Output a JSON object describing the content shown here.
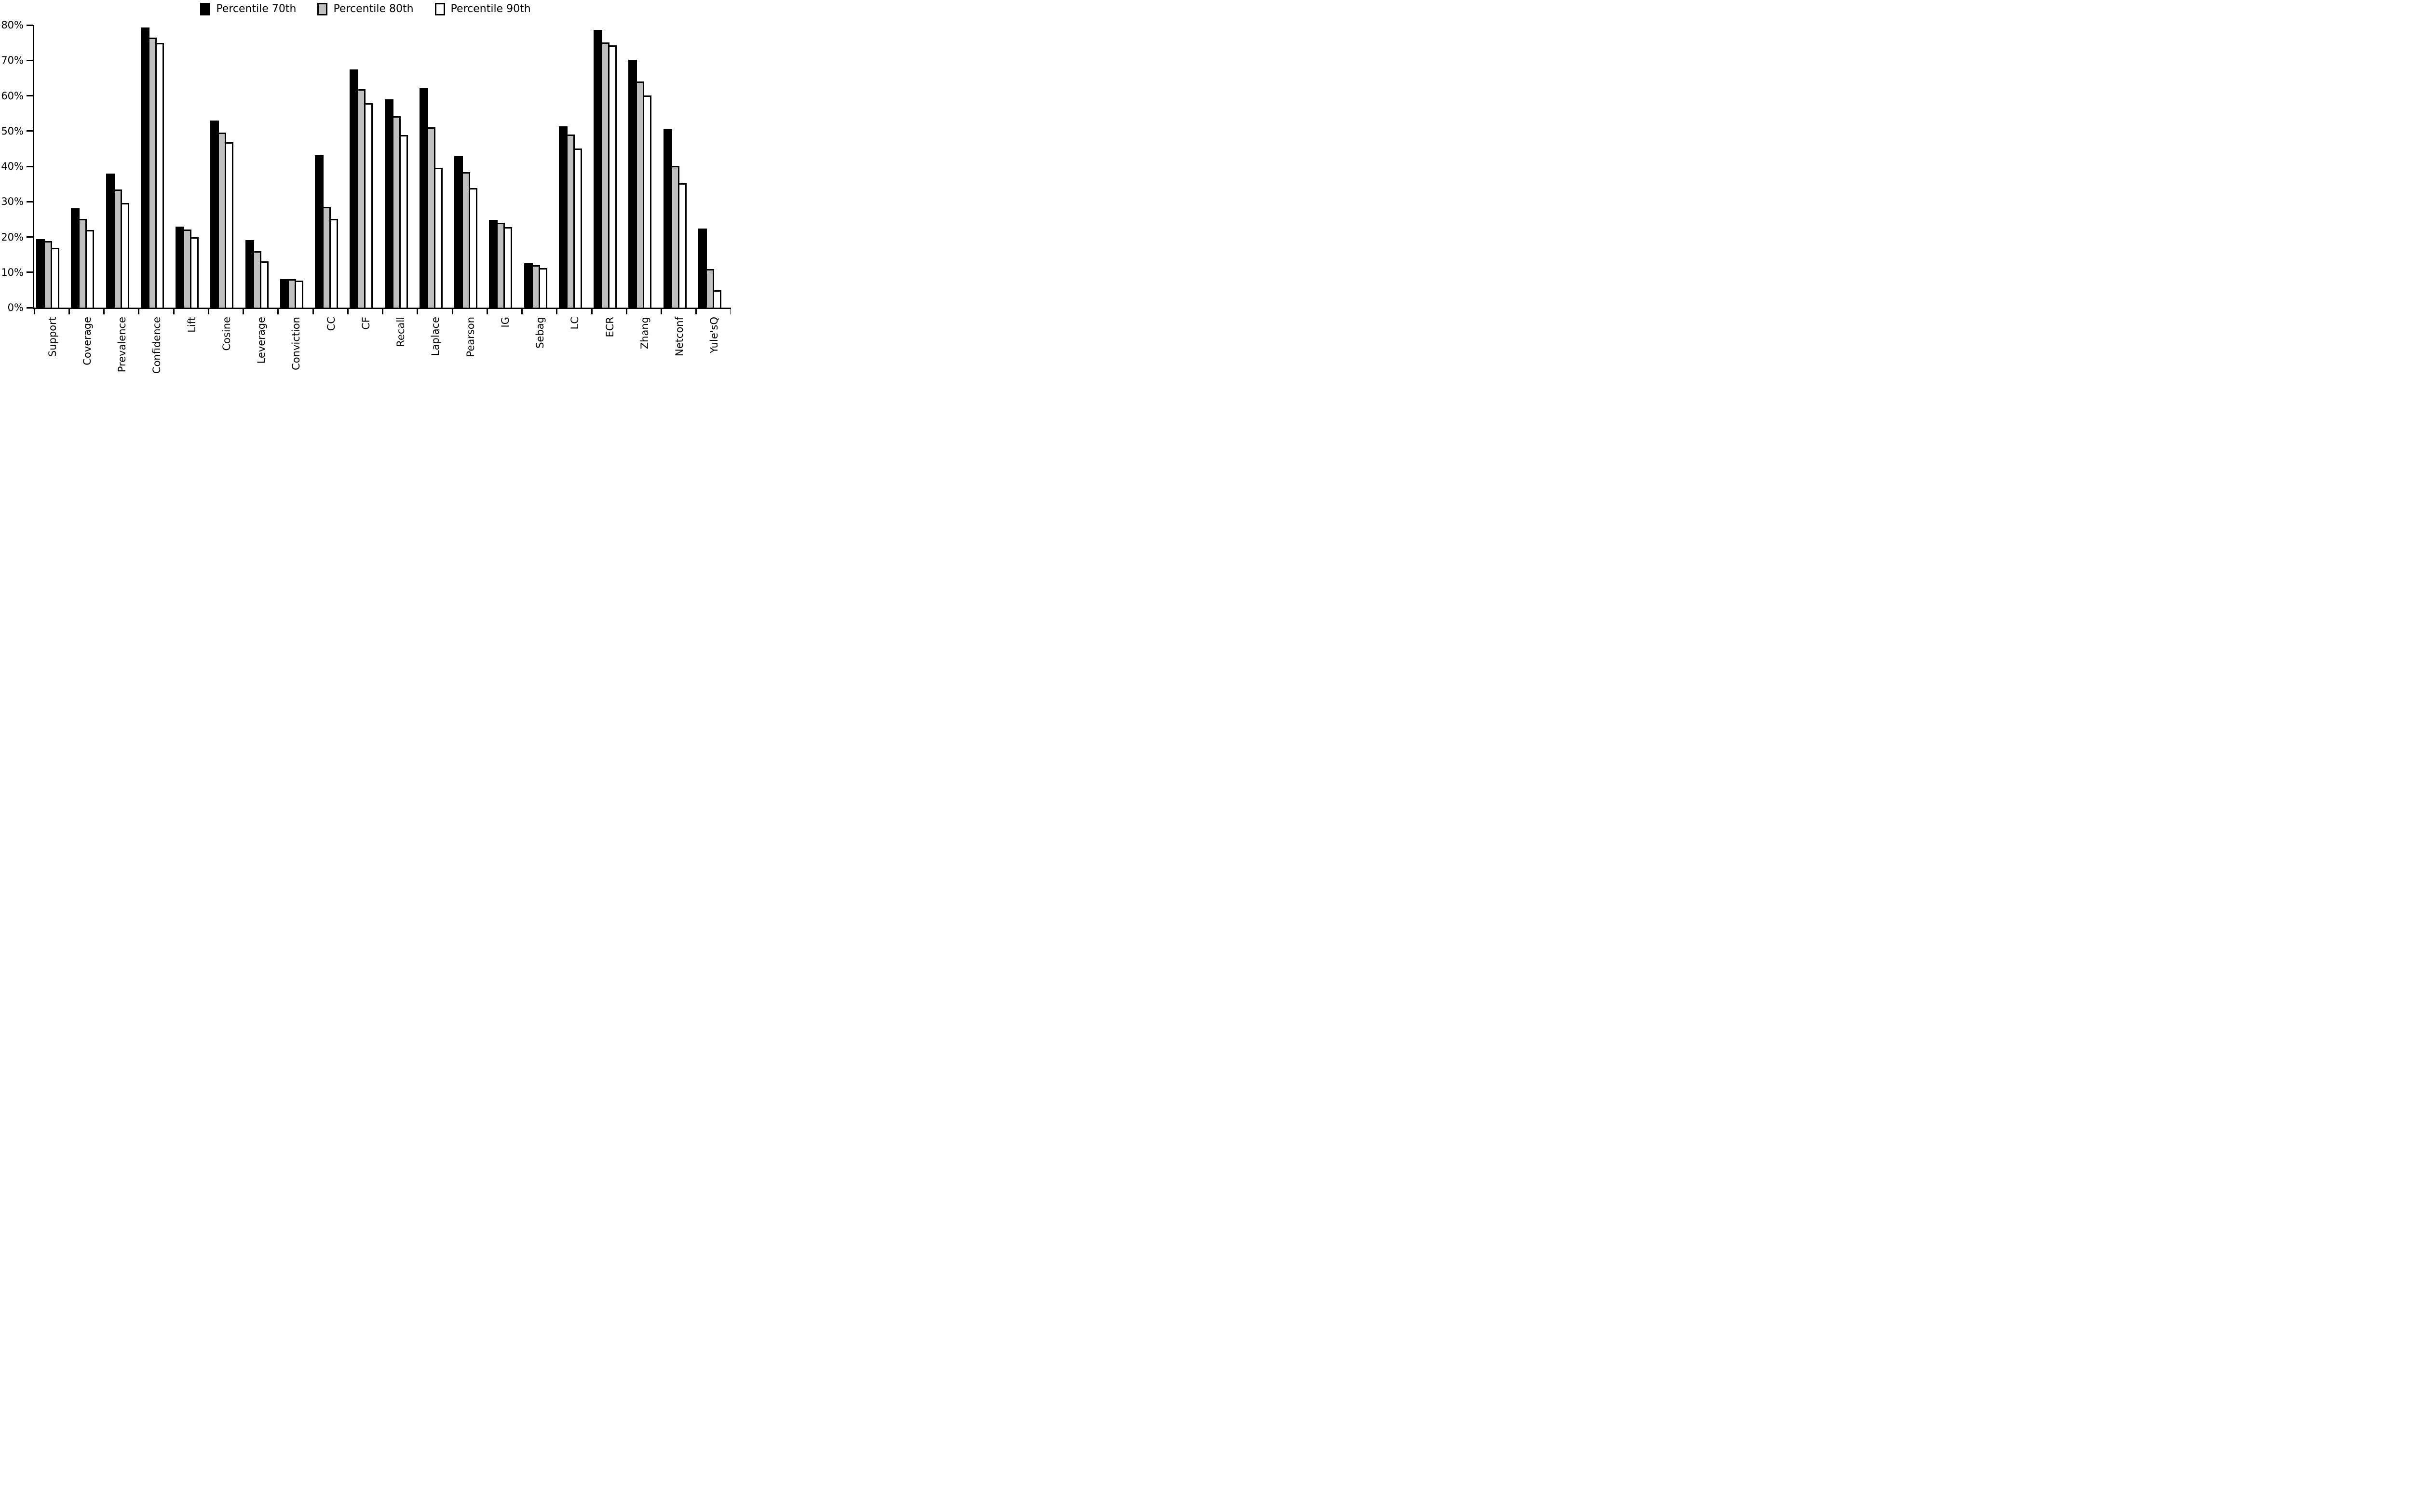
{
  "legend": {
    "items": [
      {
        "label": "Percentile 70th",
        "color": "#000000"
      },
      {
        "label": "Percentile 80th",
        "color": "#c0c0c0"
      },
      {
        "label": "Percentile 90th",
        "color": "#ffffff"
      }
    ]
  },
  "chart_data": {
    "type": "bar",
    "title": "",
    "xlabel": "",
    "ylabel": "",
    "ylim": [
      0,
      80
    ],
    "ytick_labels": [
      "0%",
      "10%",
      "20%",
      "30%",
      "40%",
      "50%",
      "60%",
      "70%",
      "80%"
    ],
    "grid": false,
    "legend_position": "top center",
    "bar_outline_color": "#000000",
    "categories": [
      "Support",
      "Coverage",
      "Prevalence",
      "Confidence",
      "Lift",
      "Cosine",
      "Leverage",
      "Conviction",
      "CC",
      "CF",
      "Recall",
      "Laplace",
      "Pearson",
      "IG",
      "Sebag",
      "LC",
      "ECR",
      "Zhang",
      "Netconf",
      "Yule'sQ"
    ],
    "series": [
      {
        "name": "Percentile 70th",
        "color": "#000000",
        "values": [
          19.4,
          28.1,
          37.9,
          79.3,
          23.0,
          53.0,
          19.1,
          8.1,
          43.2,
          67.5,
          59.0,
          62.2,
          42.9,
          24.9,
          12.6,
          51.3,
          78.6,
          70.2,
          50.6,
          22.4
        ]
      },
      {
        "name": "Percentile 80th",
        "color": "#c0c0c0",
        "values": [
          18.9,
          25.1,
          33.5,
          76.4,
          22.1,
          49.6,
          16.0,
          8.0,
          28.6,
          61.8,
          54.2,
          51.0,
          38.4,
          24.0,
          12.0,
          49.0,
          75.1,
          64.0,
          40.2,
          10.9
        ]
      },
      {
        "name": "Percentile 90th",
        "color": "#ffffff",
        "values": [
          16.9,
          22.0,
          29.6,
          74.9,
          19.9,
          46.8,
          13.1,
          7.7,
          25.1,
          57.9,
          48.9,
          39.6,
          33.9,
          22.8,
          11.2,
          45.0,
          74.3,
          60.1,
          35.2,
          4.9
        ]
      }
    ]
  }
}
